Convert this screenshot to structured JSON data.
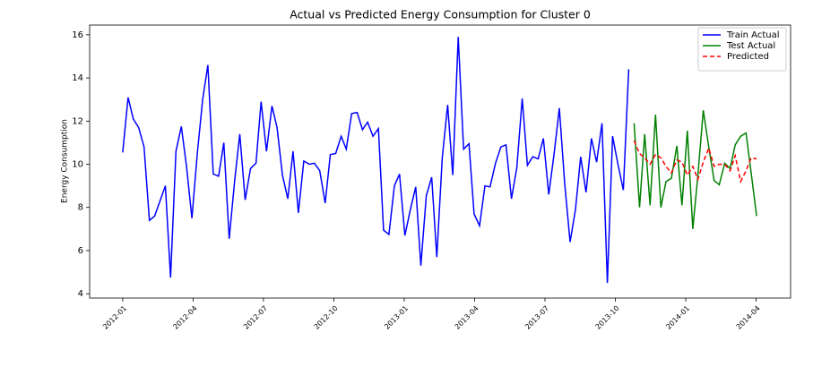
{
  "chart_data": {
    "type": "line",
    "title": "Actual vs Predicted Energy Consumption for Cluster 0",
    "y_label": "Energy Consumption",
    "xlim": [
      -1.41,
      28.47
    ],
    "ylim": [
      3.8,
      16.45
    ],
    "xticks": [
      {
        "value": 0,
        "label": "2012-01"
      },
      {
        "value": 3,
        "label": "2012-04"
      },
      {
        "value": 6,
        "label": "2012-07"
      },
      {
        "value": 9,
        "label": "2012-10"
      },
      {
        "value": 12,
        "label": "2013-01"
      },
      {
        "value": 15,
        "label": "2013-04"
      },
      {
        "value": 18,
        "label": "2013-07"
      },
      {
        "value": 21,
        "label": "2013-10"
      },
      {
        "value": 24,
        "label": "2014-01"
      },
      {
        "value": 27,
        "label": "2014-04"
      }
    ],
    "yticks": [
      4,
      6,
      8,
      10,
      12,
      14,
      16
    ],
    "grid": false,
    "legend": "upper right",
    "series": [
      {
        "name": "Train Actual",
        "color": "#0000ff",
        "linestyle": "solid",
        "x": [
          0,
          0.23,
          0.45,
          0.68,
          0.91,
          1.14,
          1.36,
          1.59,
          1.82,
          2.04,
          2.27,
          2.5,
          2.72,
          2.95,
          3.18,
          3.41,
          3.63,
          3.86,
          4.09,
          4.31,
          4.54,
          4.77,
          4.99,
          5.22,
          5.45,
          5.68,
          5.9,
          6.13,
          6.36,
          6.58,
          6.81,
          7.04,
          7.26,
          7.49,
          7.72,
          7.95,
          8.17,
          8.4,
          8.63,
          8.85,
          9.08,
          9.31,
          9.53,
          9.76,
          9.99,
          10.22,
          10.44,
          10.67,
          10.9,
          11.12,
          11.35,
          11.58,
          11.8,
          12.03,
          12.26,
          12.49,
          12.71,
          12.94,
          13.17,
          13.39,
          13.62,
          13.85,
          14.07,
          14.3,
          14.53,
          14.76,
          14.98,
          15.21,
          15.44,
          15.66,
          15.89,
          16.12,
          16.34,
          16.57,
          16.8,
          17.03,
          17.25,
          17.48,
          17.71,
          17.93,
          18.16,
          18.39,
          18.61,
          18.84,
          19.07,
          19.3,
          19.52,
          19.75,
          19.98,
          20.2,
          20.43,
          20.66,
          20.88,
          21.11,
          21.34,
          21.57
        ],
        "values": [
          10.55,
          13.1,
          12.1,
          11.7,
          10.8,
          7.4,
          7.6,
          8.3,
          9.0,
          4.75,
          10.6,
          11.75,
          9.9,
          7.5,
          10.5,
          13.0,
          14.6,
          9.55,
          9.45,
          11.0,
          6.55,
          9.2,
          11.4,
          8.35,
          9.8,
          10.05,
          12.9,
          10.6,
          12.7,
          11.7,
          9.5,
          8.4,
          10.6,
          7.75,
          10.15,
          10.0,
          10.05,
          9.7,
          8.2,
          10.45,
          10.5,
          11.3,
          10.7,
          12.35,
          12.4,
          11.6,
          11.95,
          11.3,
          11.65,
          6.95,
          6.75,
          9.0,
          9.55,
          6.7,
          7.9,
          8.95,
          5.3,
          8.55,
          9.4,
          5.7,
          10.3,
          12.75,
          9.5,
          15.9,
          10.7,
          10.95,
          7.7,
          7.15,
          9.0,
          8.95,
          10.05,
          10.8,
          10.9,
          8.4,
          9.85,
          13.05,
          9.95,
          10.35,
          10.25,
          11.2,
          8.6,
          10.5,
          12.6,
          9.1,
          6.4,
          7.9,
          10.35,
          8.7,
          11.2,
          10.1,
          11.9,
          4.5,
          11.3,
          10.0,
          8.8,
          14.4
        ]
      },
      {
        "name": "Test Actual",
        "color": "#008000",
        "linestyle": "solid",
        "x": [
          21.8,
          22.03,
          22.25,
          22.48,
          22.71,
          22.94,
          23.16,
          23.39,
          23.62,
          23.84,
          24.07,
          24.3,
          24.52,
          24.75,
          24.98,
          25.21,
          25.43,
          25.66,
          25.89,
          26.11,
          26.34,
          26.57,
          26.79,
          27.02
        ],
        "values": [
          11.9,
          8.0,
          11.4,
          8.1,
          12.3,
          8.0,
          9.2,
          9.35,
          10.85,
          8.1,
          11.55,
          7.0,
          9.5,
          12.5,
          10.8,
          9.25,
          9.05,
          10.05,
          9.8,
          10.9,
          11.3,
          11.45,
          9.6,
          7.6
        ]
      },
      {
        "name": "Predicted",
        "color": "#ff0000",
        "linestyle": "dashed",
        "x": [
          21.8,
          22.03,
          22.25,
          22.48,
          22.71,
          22.94,
          23.16,
          23.39,
          23.62,
          23.84,
          24.07,
          24.3,
          24.52,
          24.75,
          24.98,
          25.21,
          25.43,
          25.66,
          25.89,
          26.11,
          26.34,
          26.57,
          26.79,
          27.02
        ],
        "values": [
          11.1,
          10.5,
          10.3,
          10.0,
          10.45,
          10.3,
          9.9,
          9.6,
          10.2,
          10.1,
          9.5,
          9.9,
          9.3,
          10.1,
          10.75,
          9.9,
          10.0,
          10.0,
          9.7,
          10.4,
          9.2,
          9.7,
          10.3,
          10.25
        ]
      }
    ]
  }
}
